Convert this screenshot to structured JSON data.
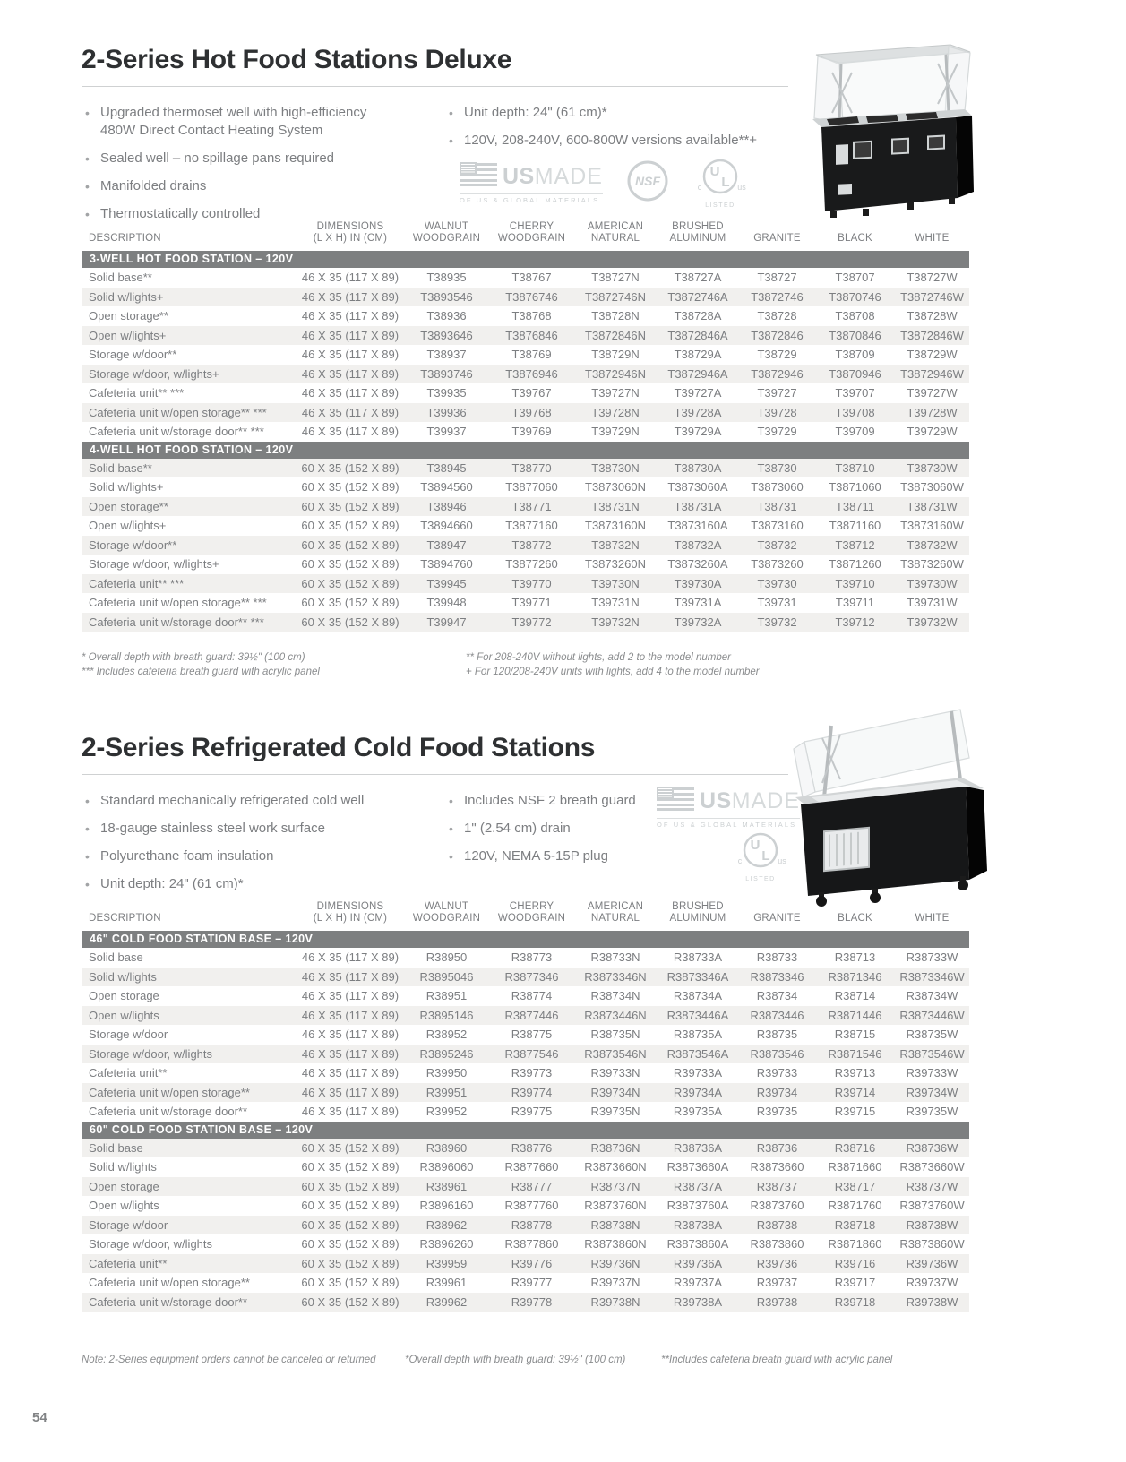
{
  "page": {
    "number": "54"
  },
  "colors": {
    "section_bar": "#7d7f80",
    "alt_row": "#f1f0ee",
    "body_text": "#7c7e81",
    "title_text": "#2e3032",
    "logo_gray": "#ccd0d2"
  },
  "hot": {
    "title": "2-Series Hot Food Stations Deluxe",
    "bullets_left": [
      "Upgraded thermoset well with high-efficiency 480W Direct Contact Heating System",
      "Sealed well – no spillage pans required",
      "Manifolded drains",
      "Thermostatically controlled"
    ],
    "bullets_right": [
      "Unit depth: 24\" (61 cm)*",
      "120V, 208-240V, 600-800W versions available**+"
    ],
    "footnotes_left": [
      "* Overall depth with breath guard: 39½\" (100 cm)",
      "*** Includes cafeteria breath guard with acrylic panel"
    ],
    "footnotes_right": [
      "** For 208-240V without lights, add 2 to the model number",
      "+ For 120/208-240V units with lights, add 4 to the model number"
    ],
    "table": {
      "headers": [
        [
          "DESCRIPTION"
        ],
        [
          "DIMENSIONS",
          "(L X H) IN (CM)"
        ],
        [
          "WALNUT",
          "WOODGRAIN"
        ],
        [
          "CHERRY",
          "WOODGRAIN"
        ],
        [
          "AMERICAN",
          "NATURAL"
        ],
        [
          "BRUSHED",
          "ALUMINUM"
        ],
        [
          "GRANITE"
        ],
        [
          "BLACK"
        ],
        [
          "WHITE"
        ]
      ],
      "sections": [
        {
          "label": "3-WELL HOT FOOD STATION – 120V",
          "rows": [
            [
              "Solid base**",
              "46 X 35 (117 X 89)",
              "T38935",
              "T38767",
              "T38727N",
              "T38727A",
              "T38727",
              "T38707",
              "T38727W"
            ],
            [
              "Solid w/lights+",
              "46 X 35 (117 X 89)",
              "T3893546",
              "T3876746",
              "T3872746N",
              "T3872746A",
              "T3872746",
              "T3870746",
              "T3872746W"
            ],
            [
              "Open storage**",
              "46 X 35 (117 X 89)",
              "T38936",
              "T38768",
              "T38728N",
              "T38728A",
              "T38728",
              "T38708",
              "T38728W"
            ],
            [
              "Open w/lights+",
              "46 X 35 (117 X 89)",
              "T3893646",
              "T3876846",
              "T3872846N",
              "T3872846A",
              "T3872846",
              "T3870846",
              "T3872846W"
            ],
            [
              "Storage w/door**",
              "46 X 35 (117 X 89)",
              "T38937",
              "T38769",
              "T38729N",
              "T38729A",
              "T38729",
              "T38709",
              "T38729W"
            ],
            [
              "Storage w/door, w/lights+",
              "46 X 35 (117 X 89)",
              "T3893746",
              "T3876946",
              "T3872946N",
              "T3872946A",
              "T3872946",
              "T3870946",
              "T3872946W"
            ],
            [
              "Cafeteria unit** ***",
              "46 X 35 (117 X 89)",
              "T39935",
              "T39767",
              "T39727N",
              "T39727A",
              "T39727",
              "T39707",
              "T39727W"
            ],
            [
              "Cafeteria unit w/open storage** ***",
              "46 X 35 (117 X 89)",
              "T39936",
              "T39768",
              "T39728N",
              "T39728A",
              "T39728",
              "T39708",
              "T39728W"
            ],
            [
              "Cafeteria unit w/storage door** ***",
              "46 X 35 (117 X 89)",
              "T39937",
              "T39769",
              "T39729N",
              "T39729A",
              "T39729",
              "T39709",
              "T39729W"
            ]
          ]
        },
        {
          "label": "4-WELL HOT FOOD STATION – 120V",
          "rows": [
            [
              "Solid base**",
              "60 X 35 (152 X 89)",
              "T38945",
              "T38770",
              "T38730N",
              "T38730A",
              "T38730",
              "T38710",
              "T38730W"
            ],
            [
              "Solid w/lights+",
              "60 X 35 (152 X 89)",
              "T3894560",
              "T3877060",
              "T3873060N",
              "T3873060A",
              "T3873060",
              "T3871060",
              "T3873060W"
            ],
            [
              "Open storage**",
              "60 X 35 (152 X 89)",
              "T38946",
              "T38771",
              "T38731N",
              "T38731A",
              "T38731",
              "T38711",
              "T38731W"
            ],
            [
              "Open w/lights+",
              "60 X 35 (152 X 89)",
              "T3894660",
              "T3877160",
              "T3873160N",
              "T3873160A",
              "T3873160",
              "T3871160",
              "T3873160W"
            ],
            [
              "Storage w/door**",
              "60 X 35 (152 X 89)",
              "T38947",
              "T38772",
              "T38732N",
              "T38732A",
              "T38732",
              "T38712",
              "T38732W"
            ],
            [
              "Storage w/door, w/lights+",
              "60 X 35 (152 X 89)",
              "T3894760",
              "T3877260",
              "T3873260N",
              "T3873260A",
              "T3873260",
              "T3871260",
              "T3873260W"
            ],
            [
              "Cafeteria unit** ***",
              "60 X 35 (152 X 89)",
              "T39945",
              "T39770",
              "T39730N",
              "T39730A",
              "T39730",
              "T39710",
              "T39730W"
            ],
            [
              "Cafeteria unit w/open storage** ***",
              "60 X 35 (152 X 89)",
              "T39948",
              "T39771",
              "T39731N",
              "T39731A",
              "T39731",
              "T39711",
              "T39731W"
            ],
            [
              "Cafeteria unit w/storage door** ***",
              "60 X 35 (152 X 89)",
              "T39947",
              "T39772",
              "T39732N",
              "T39732A",
              "T39732",
              "T39712",
              "T39732W"
            ]
          ]
        }
      ]
    }
  },
  "cold": {
    "title": "2-Series Refrigerated Cold Food Stations",
    "bullets_left": [
      "Standard mechanically refrigerated cold well",
      "18-gauge stainless steel work surface",
      "Polyurethane foam insulation",
      "Unit depth: 24\" (61 cm)*"
    ],
    "bullets_right": [
      "Includes NSF 2 breath guard",
      "1\" (2.54 cm) drain",
      "120V, NEMA 5-15P plug"
    ],
    "table": {
      "headers": [
        [
          "DESCRIPTION"
        ],
        [
          "DIMENSIONS",
          "(L X H) IN (CM)"
        ],
        [
          "WALNUT",
          "WOODGRAIN"
        ],
        [
          "CHERRY",
          "WOODGRAIN"
        ],
        [
          "AMERICAN",
          "NATURAL"
        ],
        [
          "BRUSHED",
          "ALUMINUM"
        ],
        [
          "GRANITE"
        ],
        [
          "BLACK"
        ],
        [
          "WHITE"
        ]
      ],
      "sections": [
        {
          "label": "46\" COLD FOOD STATION BASE – 120V",
          "rows": [
            [
              "Solid base",
              "46 X 35 (117 X 89)",
              "R38950",
              "R38773",
              "R38733N",
              "R38733A",
              "R38733",
              "R38713",
              "R38733W"
            ],
            [
              "Solid w/lights",
              "46 X 35 (117 X 89)",
              "R3895046",
              "R3877346",
              "R3873346N",
              "R3873346A",
              "R3873346",
              "R3871346",
              "R3873346W"
            ],
            [
              "Open storage",
              "46 X 35 (117 X 89)",
              "R38951",
              "R38774",
              "R38734N",
              "R38734A",
              "R38734",
              "R38714",
              "R38734W"
            ],
            [
              "Open w/lights",
              "46 X 35 (117 X 89)",
              "R3895146",
              "R3877446",
              "R3873446N",
              "R3873446A",
              "R3873446",
              "R3871446",
              "R3873446W"
            ],
            [
              "Storage w/door",
              "46 X 35 (117 X 89)",
              "R38952",
              "R38775",
              "R38735N",
              "R38735A",
              "R38735",
              "R38715",
              "R38735W"
            ],
            [
              "Storage w/door, w/lights",
              "46 X 35 (117 X 89)",
              "R3895246",
              "R3877546",
              "R3873546N",
              "R3873546A",
              "R3873546",
              "R3871546",
              "R3873546W"
            ],
            [
              "Cafeteria unit**",
              "46 X 35 (117 X 89)",
              "R39950",
              "R39773",
              "R39733N",
              "R39733A",
              "R39733",
              "R39713",
              "R39733W"
            ],
            [
              "Cafeteria unit w/open storage**",
              "46 X 35 (117 X 89)",
              "R39951",
              "R39774",
              "R39734N",
              "R39734A",
              "R39734",
              "R39714",
              "R39734W"
            ],
            [
              "Cafeteria unit w/storage door**",
              "46 X 35 (117 X 89)",
              "R39952",
              "R39775",
              "R39735N",
              "R39735A",
              "R39735",
              "R39715",
              "R39735W"
            ]
          ]
        },
        {
          "label": "60\" COLD FOOD STATION BASE – 120V",
          "rows": [
            [
              "Solid base",
              "60 X 35 (152 X 89)",
              "R38960",
              "R38776",
              "R38736N",
              "R38736A",
              "R38736",
              "R38716",
              "R38736W"
            ],
            [
              "Solid w/lights",
              "60 X 35 (152 X 89)",
              "R3896060",
              "R3877660",
              "R3873660N",
              "R3873660A",
              "R3873660",
              "R3871660",
              "R3873660W"
            ],
            [
              "Open storage",
              "60 X 35 (152 X 89)",
              "R38961",
              "R38777",
              "R38737N",
              "R38737A",
              "R38737",
              "R38717",
              "R38737W"
            ],
            [
              "Open w/lights",
              "60 X 35 (152 X 89)",
              "R3896160",
              "R3877760",
              "R3873760N",
              "R3873760A",
              "R3873760",
              "R3871760",
              "R3873760W"
            ],
            [
              "Storage w/door",
              "60 X 35 (152 X 89)",
              "R38962",
              "R38778",
              "R38738N",
              "R38738A",
              "R38738",
              "R38718",
              "R38738W"
            ],
            [
              "Storage w/door, w/lights",
              "60 X 35 (152 X 89)",
              "R3896260",
              "R3877860",
              "R3873860N",
              "R3873860A",
              "R3873860",
              "R3871860",
              "R3873860W"
            ],
            [
              "Cafeteria unit**",
              "60 X 35 (152 X 89)",
              "R39959",
              "R39776",
              "R39736N",
              "R39736A",
              "R39736",
              "R39716",
              "R39736W"
            ],
            [
              "Cafeteria unit w/open storage**",
              "60 X 35 (152 X 89)",
              "R39961",
              "R39777",
              "R39737N",
              "R39737A",
              "R39737",
              "R39717",
              "R39737W"
            ],
            [
              "Cafeteria unit w/storage door**",
              "60 X 35 (152 X 89)",
              "R39962",
              "R39778",
              "R39738N",
              "R39738A",
              "R39738",
              "R39718",
              "R39738W"
            ]
          ]
        }
      ]
    },
    "notes": [
      "Note: 2-Series equipment orders cannot be canceled or returned",
      "*Overall depth with breath guard: 39½\" (100 cm)",
      "**Includes cafeteria breath guard with acrylic panel"
    ]
  },
  "logos": {
    "usmade_us": "US",
    "usmade_made": "MADE",
    "usmade_tagline": "OF US & GLOBAL MATERIALS",
    "nsf_label": "NSF",
    "ul_label": "UL",
    "ul_c": "c",
    "ul_us": "US",
    "ul_listed": "LISTED"
  }
}
